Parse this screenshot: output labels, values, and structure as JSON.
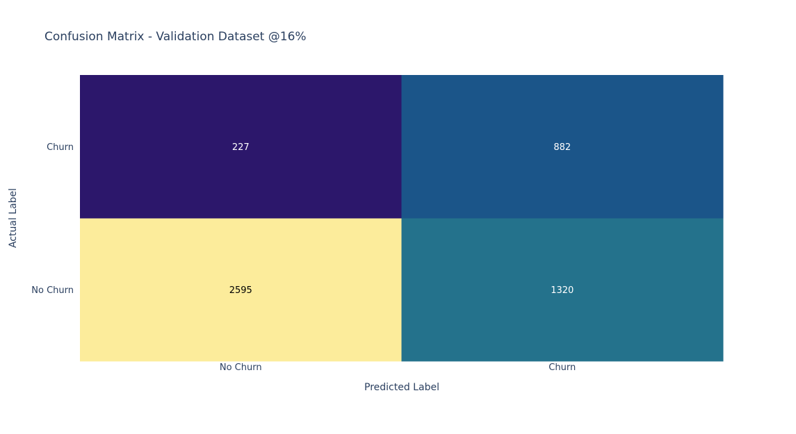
{
  "chart_data": {
    "type": "heatmap",
    "title": "Confusion Matrix - Validation Dataset @16%",
    "xlabel": "Predicted Label",
    "ylabel": "Actual Label",
    "x_categories": [
      "No Churn",
      "Churn"
    ],
    "y_categories": [
      "No Churn",
      "Churn"
    ],
    "z": [
      [
        2595,
        1320
      ],
      [
        227,
        882
      ]
    ],
    "colorscale": [
      "#2c176b",
      "#17628f",
      "#388c88",
      "#fcec9b"
    ],
    "grid": false,
    "legend": "none"
  }
}
